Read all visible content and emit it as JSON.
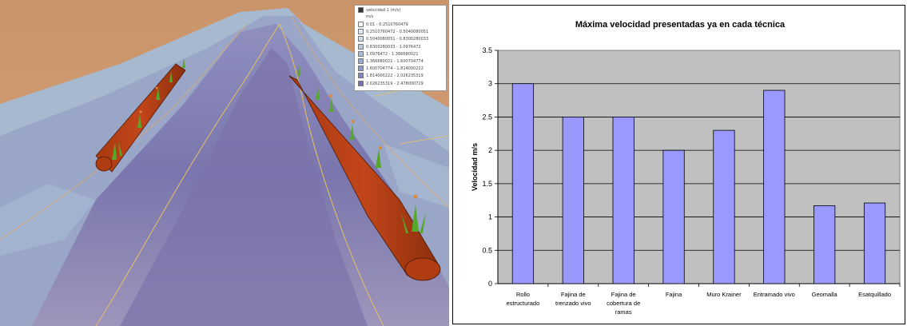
{
  "figure": {
    "left_image": {
      "description_icon": "river-bank-3d-render",
      "legend": {
        "title": "velocidad 1 (m/s)",
        "subtitle": "m/s",
        "checkbox_checked": true,
        "entries": [
          {
            "label": "0.01 - 0.2510760479",
            "color": "#f2f6fb"
          },
          {
            "label": "0.2510760472 - 0.5040080051",
            "color": "#dfe9f5"
          },
          {
            "label": "0.5040080051 - 0.8300280033",
            "color": "#cbdced"
          },
          {
            "label": "0.8300280033 - 1.0976472",
            "color": "#b7cde4"
          },
          {
            "label": "1.0976472 - 1.366680021",
            "color": "#a4bedb"
          },
          {
            "label": "1.366680021 - 1.600704774",
            "color": "#94acd2"
          },
          {
            "label": "1.600704774 - 1.814000222",
            "color": "#8a9ac8"
          },
          {
            "label": "1.814000222 - 2.026235319",
            "color": "#7f86bd"
          },
          {
            "label": "2.026235319 - 2.478000729",
            "color": "#7472b0"
          }
        ]
      }
    },
    "chart_data": {
      "type": "bar",
      "title": "Máxima velocidad presentadas ya en cada técnica",
      "ylabel": "Velocidad m/s",
      "xlabel": "",
      "categories": [
        "Rollo estructurado",
        "Fajina de trenzado vivo",
        "Fajina de cobertura de ramas",
        "Fajina",
        "Muro Krainer",
        "Entramado vivo",
        "Geomalla",
        "Esatquillado"
      ],
      "category_lines": [
        [
          "Rollo",
          "estructurado"
        ],
        [
          "Fajina de",
          "trenzado vivo"
        ],
        [
          "Fajina de",
          "cobertura de",
          "ramas"
        ],
        [
          "Fajina"
        ],
        [
          "Muro Krainer"
        ],
        [
          "Entramado vivo"
        ],
        [
          "Geomalla"
        ],
        [
          "Esatquillado"
        ]
      ],
      "values": [
        3.0,
        2.5,
        2.5,
        2.0,
        2.3,
        2.9,
        1.17,
        1.21
      ],
      "ylim": [
        0,
        3.5
      ],
      "yticks": [
        "0",
        "0.5",
        "1",
        "1.5",
        "2",
        "2.5",
        "3",
        "3.5"
      ],
      "ytick_values": [
        0,
        0.5,
        1,
        1.5,
        2,
        2.5,
        3,
        3.5
      ],
      "grid": true,
      "legend": "none",
      "colors": {
        "bar_fill": "#9999ff",
        "bar_stroke": "#000000",
        "plot_bg": "#c0c0c0",
        "grid": "#000000"
      }
    }
  }
}
